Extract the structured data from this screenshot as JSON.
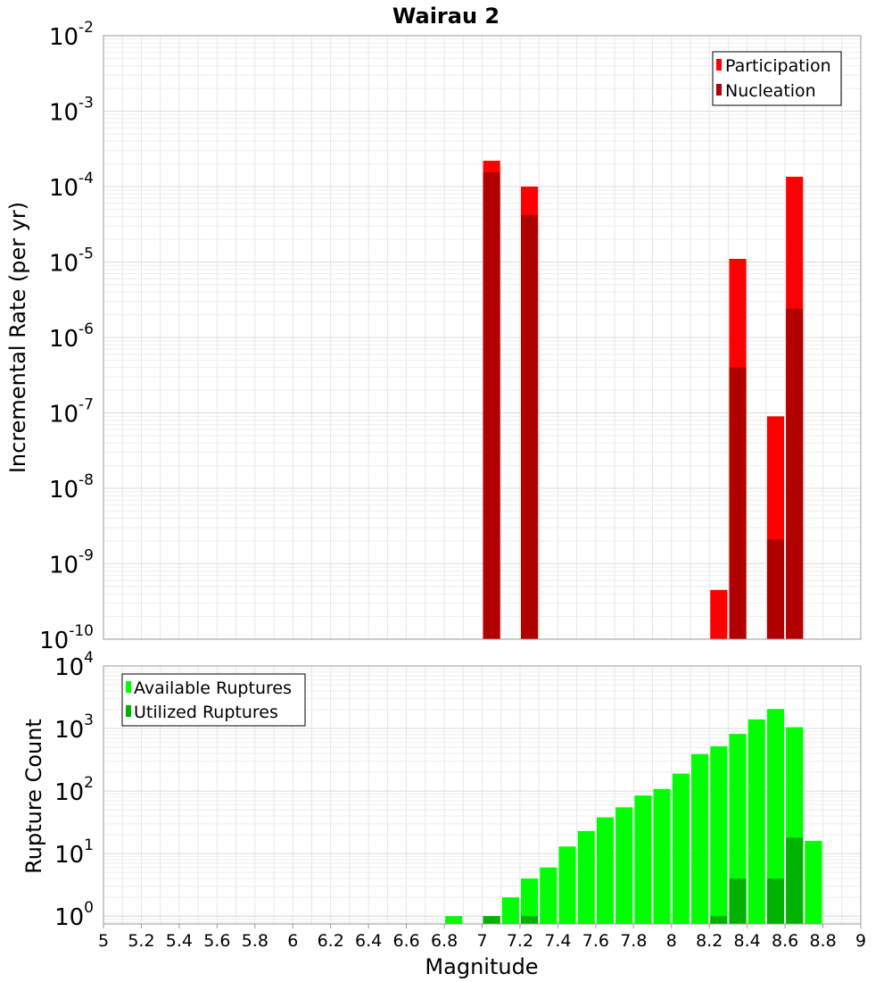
{
  "chart_data": [
    {
      "type": "bar",
      "title": "Wairau 2",
      "ylabel": "Incremental Rate (per yr)",
      "xlabel": "",
      "xlim": [
        5,
        9
      ],
      "ylim": [
        1e-10,
        0.01
      ],
      "yscale": "log",
      "y_tick_exponents": [
        -10,
        -9,
        -8,
        -7,
        -6,
        -5,
        -4,
        -3,
        -2
      ],
      "grid": true,
      "legend_position": "top-right",
      "bar_width": 0.09,
      "series": [
        {
          "name": "Participation",
          "color": "#ff0000",
          "points": [
            {
              "x": 7.05,
              "y": 0.00022
            },
            {
              "x": 7.25,
              "y": 0.0001
            },
            {
              "x": 8.25,
              "y": 4.5e-10
            },
            {
              "x": 8.35,
              "y": 1.1e-05
            },
            {
              "x": 8.55,
              "y": 9e-08
            },
            {
              "x": 8.65,
              "y": 0.000135
            }
          ]
        },
        {
          "name": "Nucleation",
          "color": "#b20000",
          "points": [
            {
              "x": 7.05,
              "y": 0.000155
            },
            {
              "x": 7.25,
              "y": 4.2e-05
            },
            {
              "x": 8.35,
              "y": 4e-07
            },
            {
              "x": 8.55,
              "y": 2.1e-09
            },
            {
              "x": 8.65,
              "y": 2.4e-06
            }
          ]
        }
      ]
    },
    {
      "type": "bar",
      "title": "",
      "ylabel": "Rupture Count",
      "xlabel": "Magnitude",
      "xlim": [
        5,
        9
      ],
      "ylim": [
        0.75,
        10000.0
      ],
      "yscale": "log",
      "y_tick_exponents": [
        0,
        1,
        2,
        3,
        4
      ],
      "x_ticks": [
        "5",
        "5.2",
        "5.4",
        "5.6",
        "5.8",
        "6",
        "6.2",
        "6.4",
        "6.6",
        "6.8",
        "7",
        "7.2",
        "7.4",
        "7.6",
        "7.8",
        "8",
        "8.2",
        "8.4",
        "8.6",
        "8.8",
        "9"
      ],
      "grid": true,
      "legend_position": "top-left",
      "bar_width": 0.09,
      "series": [
        {
          "name": "Available Ruptures",
          "color": "#00ff00",
          "points": [
            {
              "x": 6.85,
              "y": 1
            },
            {
              "x": 7.05,
              "y": 1
            },
            {
              "x": 7.15,
              "y": 2
            },
            {
              "x": 7.25,
              "y": 4
            },
            {
              "x": 7.35,
              "y": 6
            },
            {
              "x": 7.45,
              "y": 13
            },
            {
              "x": 7.55,
              "y": 23
            },
            {
              "x": 7.65,
              "y": 38
            },
            {
              "x": 7.75,
              "y": 55
            },
            {
              "x": 7.85,
              "y": 85
            },
            {
              "x": 7.95,
              "y": 108
            },
            {
              "x": 8.05,
              "y": 190
            },
            {
              "x": 8.15,
              "y": 390
            },
            {
              "x": 8.25,
              "y": 520
            },
            {
              "x": 8.35,
              "y": 820
            },
            {
              "x": 8.45,
              "y": 1400
            },
            {
              "x": 8.55,
              "y": 2050
            },
            {
              "x": 8.65,
              "y": 1050
            },
            {
              "x": 8.75,
              "y": 16
            }
          ]
        },
        {
          "name": "Utilized Ruptures",
          "color": "#00b200",
          "points": [
            {
              "x": 7.05,
              "y": 1
            },
            {
              "x": 7.25,
              "y": 1
            },
            {
              "x": 8.25,
              "y": 1
            },
            {
              "x": 8.35,
              "y": 4
            },
            {
              "x": 8.55,
              "y": 4
            },
            {
              "x": 8.65,
              "y": 18
            }
          ]
        }
      ]
    }
  ]
}
